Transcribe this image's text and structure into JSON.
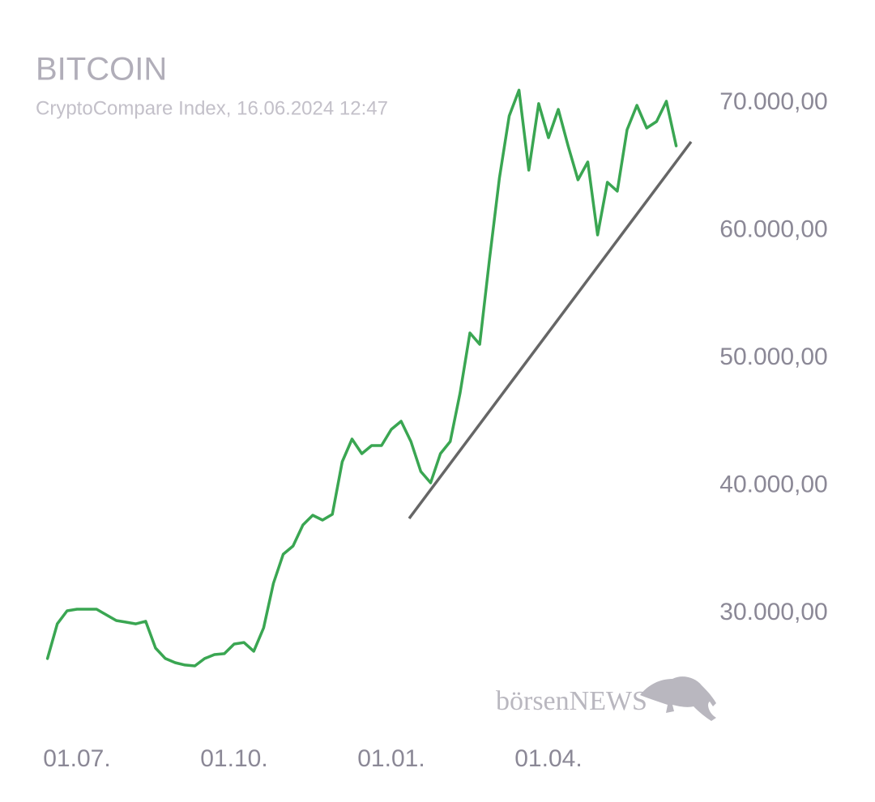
{
  "chart_data": {
    "type": "line",
    "title": "BITCOIN",
    "subtitle": "CryptoCompare Index, 16.06.2024 12:47",
    "watermark": "börsenNEWS",
    "color": "#3aa652",
    "categories": [
      null,
      null,
      null,
      "01.07.",
      null,
      null,
      null,
      null,
      null,
      null,
      null,
      null,
      null,
      null,
      null,
      null,
      null,
      null,
      null,
      "01.10.",
      null,
      null,
      null,
      null,
      null,
      null,
      null,
      null,
      null,
      null,
      null,
      null,
      null,
      null,
      null,
      "01.01.",
      null,
      null,
      null,
      null,
      null,
      null,
      null,
      null,
      null,
      null,
      null,
      null,
      null,
      null,
      null,
      "01.04.",
      null,
      null,
      null,
      null,
      null,
      null,
      null,
      null,
      null,
      null,
      null,
      null,
      null
    ],
    "values": [
      26450,
      29170,
      30190,
      30320,
      30320,
      30320,
      29870,
      29430,
      29300,
      29170,
      29370,
      27270,
      26450,
      26130,
      25940,
      25870,
      26450,
      26760,
      26830,
      27590,
      27710,
      27020,
      28860,
      32350,
      34630,
      35270,
      36920,
      37680,
      37300,
      37750,
      41870,
      43650,
      42510,
      43140,
      43140,
      44410,
      45050,
      43460,
      41110,
      40220,
      42510,
      43460,
      47270,
      51970,
      51080,
      57750,
      64100,
      68980,
      71000,
      64730,
      69940,
      67270,
      69490,
      66630,
      63970,
      65370,
      59650,
      63780,
      63080,
      67900,
      69810,
      68030,
      68540,
      70130,
      66630
    ],
    "ylim": [
      20000,
      75000
    ],
    "yticks": [
      {
        "value": 30000,
        "label": "30.000,00"
      },
      {
        "value": 40000,
        "label": "40.000,00"
      },
      {
        "value": 50000,
        "label": "50.000,00"
      },
      {
        "value": 60000,
        "label": "60.000,00"
      },
      {
        "value": 70000,
        "label": "70.000,00"
      }
    ],
    "grid": false
  }
}
